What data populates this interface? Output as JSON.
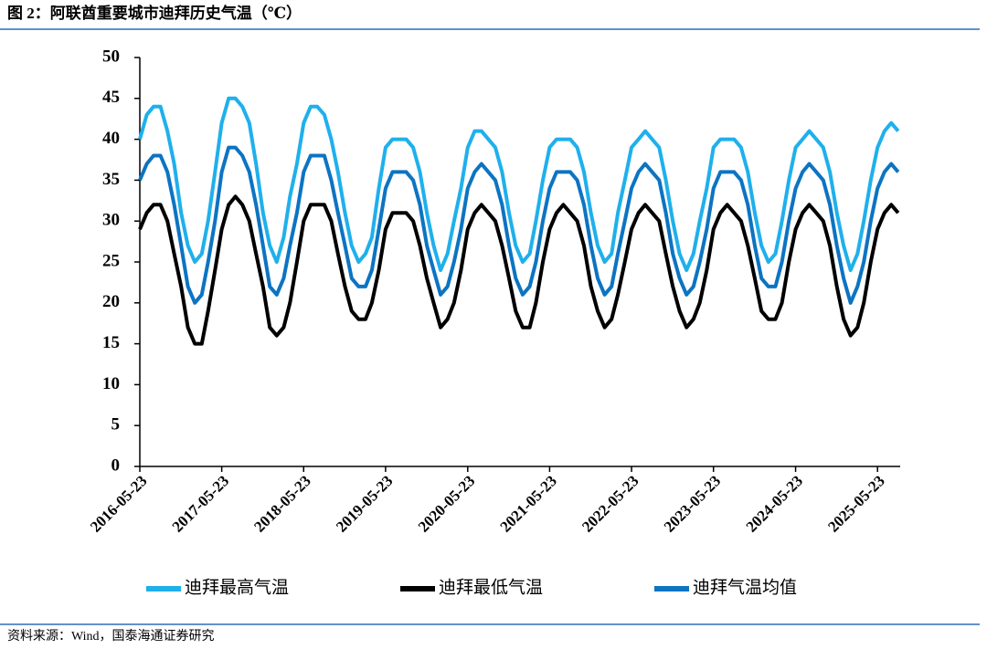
{
  "header": {
    "title": "图 2：阿联酋重要城市迪拜历史气温（℃）"
  },
  "chart_data": {
    "type": "line",
    "x": [
      "2016-05-23",
      "2016-06-23",
      "2016-07-23",
      "2016-08-23",
      "2016-09-23",
      "2016-10-23",
      "2016-11-23",
      "2016-12-23",
      "2017-01-23",
      "2017-02-23",
      "2017-03-23",
      "2017-04-23",
      "2017-05-23",
      "2017-06-23",
      "2017-07-23",
      "2017-08-23",
      "2017-09-23",
      "2017-10-23",
      "2017-11-23",
      "2017-12-23",
      "2018-01-23",
      "2018-02-23",
      "2018-03-23",
      "2018-04-23",
      "2018-05-23",
      "2018-06-23",
      "2018-07-23",
      "2018-08-23",
      "2018-09-23",
      "2018-10-23",
      "2018-11-23",
      "2018-12-23",
      "2019-01-23",
      "2019-02-23",
      "2019-03-23",
      "2019-04-23",
      "2019-05-23",
      "2019-06-23",
      "2019-07-23",
      "2019-08-23",
      "2019-09-23",
      "2019-10-23",
      "2019-11-23",
      "2019-12-23",
      "2020-01-23",
      "2020-02-23",
      "2020-03-23",
      "2020-04-23",
      "2020-05-23",
      "2020-06-23",
      "2020-07-23",
      "2020-08-23",
      "2020-09-23",
      "2020-10-23",
      "2020-11-23",
      "2020-12-23",
      "2021-01-23",
      "2021-02-23",
      "2021-03-23",
      "2021-04-23",
      "2021-05-23",
      "2021-06-23",
      "2021-07-23",
      "2021-08-23",
      "2021-09-23",
      "2021-10-23",
      "2021-11-23",
      "2021-12-23",
      "2022-01-23",
      "2022-02-23",
      "2022-03-23",
      "2022-04-23",
      "2022-05-23",
      "2022-06-23",
      "2022-07-23",
      "2022-08-23",
      "2022-09-23",
      "2022-10-23",
      "2022-11-23",
      "2022-12-23",
      "2023-01-23",
      "2023-02-23",
      "2023-03-23",
      "2023-04-23",
      "2023-05-23",
      "2023-06-23",
      "2023-07-23",
      "2023-08-23",
      "2023-09-23",
      "2023-10-23",
      "2023-11-23",
      "2023-12-23",
      "2024-01-23",
      "2024-02-23",
      "2024-03-23",
      "2024-04-23",
      "2024-05-23",
      "2024-06-23",
      "2024-07-23",
      "2024-08-23",
      "2024-09-23",
      "2024-10-23",
      "2024-11-23",
      "2024-12-23",
      "2025-01-23",
      "2025-02-23",
      "2025-03-23",
      "2025-04-23",
      "2025-05-23",
      "2025-06-23",
      "2025-07-23",
      "2025-08-23"
    ],
    "series": [
      {
        "name": "迪拜最高气温",
        "color": "#1fb0ec",
        "values": [
          40,
          43,
          44,
          44,
          41,
          37,
          31,
          27,
          25,
          26,
          30,
          36,
          42,
          45,
          45,
          44,
          42,
          37,
          31,
          27,
          25,
          28,
          33,
          37,
          42,
          44,
          44,
          43,
          40,
          36,
          31,
          27,
          25,
          26,
          28,
          34,
          39,
          40,
          40,
          40,
          39,
          36,
          31,
          27,
          24,
          26,
          30,
          34,
          39,
          41,
          41,
          40,
          39,
          36,
          31,
          27,
          25,
          26,
          30,
          35,
          39,
          40,
          40,
          40,
          39,
          36,
          31,
          27,
          25,
          26,
          31,
          35,
          39,
          40,
          41,
          40,
          39,
          35,
          30,
          26,
          24,
          26,
          30,
          34,
          39,
          40,
          40,
          40,
          39,
          36,
          31,
          27,
          25,
          26,
          30,
          35,
          39,
          40,
          41,
          40,
          39,
          36,
          31,
          27,
          24,
          26,
          30,
          35,
          39,
          41,
          42,
          41
        ]
      },
      {
        "name": "迪拜最低气温",
        "color": "#000000",
        "values": [
          29,
          31,
          32,
          32,
          30,
          26,
          22,
          17,
          15,
          15,
          19,
          24,
          29,
          32,
          33,
          32,
          30,
          26,
          22,
          17,
          16,
          17,
          20,
          25,
          30,
          32,
          32,
          32,
          30,
          26,
          22,
          19,
          18,
          18,
          20,
          24,
          29,
          31,
          31,
          31,
          30,
          27,
          23,
          20,
          17,
          18,
          20,
          24,
          29,
          31,
          32,
          31,
          30,
          27,
          23,
          19,
          17,
          17,
          20,
          25,
          29,
          31,
          32,
          31,
          30,
          27,
          22,
          19,
          17,
          18,
          21,
          25,
          29,
          31,
          32,
          31,
          30,
          26,
          22,
          19,
          17,
          18,
          20,
          24,
          29,
          31,
          32,
          31,
          30,
          27,
          23,
          19,
          18,
          18,
          20,
          25,
          29,
          31,
          32,
          31,
          30,
          27,
          22,
          18,
          16,
          17,
          20,
          25,
          29,
          31,
          32,
          31
        ]
      },
      {
        "name": "迪拜气温均值",
        "color": "#0c74c2",
        "values": [
          35,
          37,
          38,
          38,
          36,
          32,
          27,
          22,
          20,
          21,
          25,
          30,
          36,
          39,
          39,
          38,
          36,
          32,
          27,
          22,
          21,
          23,
          27,
          31,
          36,
          38,
          38,
          38,
          35,
          31,
          27,
          23,
          22,
          22,
          24,
          29,
          34,
          36,
          36,
          36,
          35,
          32,
          27,
          24,
          21,
          22,
          25,
          29,
          34,
          36,
          37,
          36,
          35,
          32,
          27,
          23,
          21,
          22,
          25,
          30,
          34,
          36,
          36,
          36,
          35,
          32,
          27,
          23,
          21,
          22,
          26,
          30,
          34,
          36,
          37,
          36,
          35,
          31,
          26,
          23,
          21,
          22,
          25,
          29,
          34,
          36,
          36,
          36,
          35,
          32,
          27,
          23,
          22,
          22,
          25,
          30,
          34,
          36,
          37,
          36,
          35,
          32,
          27,
          23,
          20,
          22,
          25,
          30,
          34,
          36,
          37,
          36
        ]
      }
    ],
    "xlim": [
      "2016-05-23",
      "2025-09-01"
    ],
    "xticks": [
      "2016-05-23",
      "2017-05-23",
      "2018-05-23",
      "2019-05-23",
      "2020-05-23",
      "2021-05-23",
      "2022-05-23",
      "2023-05-23",
      "2024-05-23",
      "2025-05-23"
    ],
    "ylim": [
      0,
      50
    ],
    "yticks": [
      0,
      5,
      10,
      15,
      20,
      25,
      30,
      35,
      40,
      45,
      50
    ]
  },
  "footer": {
    "source": "资料来源：Wind，国泰海通证券研究"
  }
}
